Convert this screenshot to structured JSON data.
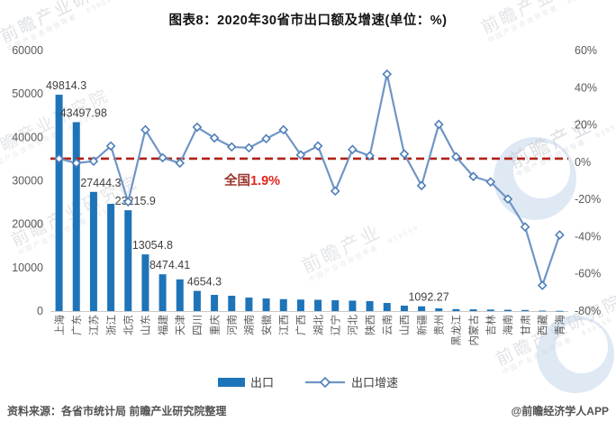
{
  "title": "图表8：2020年30省市出口额及增速(单位：%)",
  "chart_data": {
    "type": "bar",
    "title": "图表8：2020年30省市出口额及增速(单位：%)",
    "categories": [
      "上海",
      "广东",
      "江苏",
      "浙江",
      "北京",
      "山东",
      "福建",
      "天津",
      "四川",
      "重庆",
      "河南",
      "湖南",
      "安徽",
      "江西",
      "广西",
      "湖北",
      "辽宁",
      "河北",
      "陕西",
      "云南",
      "山西",
      "新疆",
      "贵州",
      "黑龙江",
      "内蒙古",
      "吉林",
      "海南",
      "甘肃",
      "西藏",
      "青海"
    ],
    "series": [
      {
        "name": "出口",
        "type": "bar",
        "axis": "left",
        "values": [
          49814.3,
          43497.98,
          27444.3,
          24700,
          23215.9,
          13054.8,
          8474.41,
          7300,
          4654.3,
          3730,
          3530,
          3110,
          2900,
          2750,
          2650,
          2600,
          2500,
          2400,
          2300,
          1870,
          1250,
          1092.27,
          620,
          450,
          400,
          350,
          300,
          250,
          100,
          60
        ]
      },
      {
        "name": "出口增速",
        "type": "line",
        "axis": "right",
        "values": [
          1.9,
          -0.5,
          0.5,
          8.7,
          -21.3,
          17.4,
          2.4,
          -0.5,
          18.8,
          13.0,
          8.2,
          7.7,
          12.6,
          17.4,
          3.9,
          8.7,
          -15.5,
          6.8,
          3.4,
          47.3,
          4.4,
          -12.6,
          20.3,
          2.9,
          -7.7,
          -10.6,
          -19.8,
          -34.8,
          -66.2,
          -39.1
        ]
      }
    ],
    "bar_labels": {
      "0": "49814.3",
      "1": "43497.98",
      "2": "27444.3",
      "4": "23215.9",
      "5": "13054.8",
      "6": "8474.41",
      "8": "4654.3",
      "21": "1092.27"
    },
    "left_axis": {
      "min": 0,
      "max": 60000,
      "step": 10000,
      "ticks": [
        "0",
        "10000",
        "20000",
        "30000",
        "40000",
        "50000",
        "60000"
      ]
    },
    "right_axis": {
      "min": -80,
      "max": 60,
      "step": 20,
      "ticks": [
        "60%",
        "40%",
        "20%",
        "0%",
        "-20%",
        "-40%",
        "-60%",
        "-80%"
      ]
    },
    "reference_line": {
      "value": 1.9,
      "label_prefix": "全国",
      "label_value": "1.9%"
    },
    "legend": [
      "出口",
      "出口增速"
    ],
    "legend_position": "bottom",
    "grid": false,
    "colors": {
      "bar": "#1e74b8",
      "line": "#6f95c6",
      "marker_stroke": "#4e7fba",
      "reference": "#b02018",
      "ref_label_prefix": "#9c362b",
      "ref_label_value": "#e1251b",
      "axis_text": "#595959",
      "data_label": "#3f3f3f",
      "axis_line": "#c9c9c9"
    }
  },
  "legend": {
    "export_label": "出口",
    "growth_label": "出口增速"
  },
  "footer": {
    "source": "资料来源：各省市统计局 前瞻产业研究院整理",
    "credit": "@前瞻经济学人APP"
  },
  "watermark": {
    "brand": "前瞻产业研究院",
    "brand_short": "前瞻产业",
    "tagline": "中国产业咨询领导者",
    "code": "839599"
  }
}
